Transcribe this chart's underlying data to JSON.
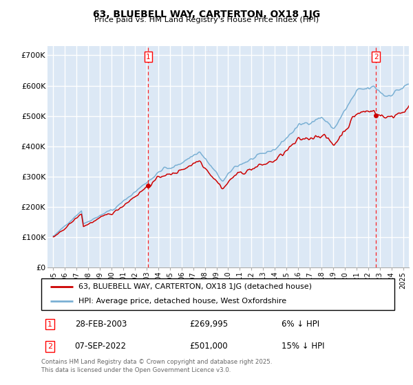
{
  "title": "63, BLUEBELL WAY, CARTERTON, OX18 1JG",
  "subtitle": "Price paid vs. HM Land Registry's House Price Index (HPI)",
  "line_color_price": "#cc0000",
  "line_color_hpi": "#7ab0d4",
  "legend_label_price": "63, BLUEBELL WAY, CARTERTON, OX18 1JG (detached house)",
  "legend_label_hpi": "HPI: Average price, detached house, West Oxfordshire",
  "footnote": "Contains HM Land Registry data © Crown copyright and database right 2025.\nThis data is licensed under the Open Government Licence v3.0.",
  "ylim": [
    0,
    730000
  ],
  "yticks": [
    0,
    100000,
    200000,
    300000,
    400000,
    500000,
    600000,
    700000
  ],
  "ytick_labels": [
    "£0",
    "£100K",
    "£200K",
    "£300K",
    "£400K",
    "£500K",
    "£600K",
    "£700K"
  ],
  "background_color": "#dce8f5",
  "grid_color": "#f5f8fc",
  "t1_year": 2003.15,
  "t1_price": 269995,
  "t2_year": 2022.68,
  "t2_price": 501000,
  "info1_date": "28-FEB-2003",
  "info1_price": "£269,995",
  "info1_pct": "6% ↓ HPI",
  "info2_date": "07-SEP-2022",
  "info2_price": "£501,000",
  "info2_pct": "15% ↓ HPI"
}
